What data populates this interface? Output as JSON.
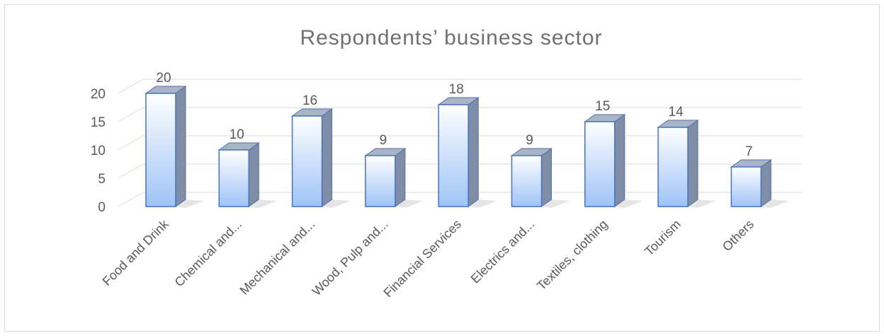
{
  "chart_data": {
    "type": "bar",
    "title": "Respondents’ business sector",
    "xlabel": "",
    "ylabel": "",
    "categories": [
      "Food and Drink",
      "Chemical and...",
      "Mechanical and...",
      "Wood, Pulp and...",
      "Financial Services",
      "Electrics and...",
      "Textiles, clothing",
      "Tourism",
      "Others"
    ],
    "values": [
      20,
      10,
      16,
      9,
      18,
      9,
      15,
      14,
      7
    ],
    "ylim": [
      0,
      20
    ],
    "yticks": [
      0,
      5,
      10,
      15,
      20
    ],
    "grid": true,
    "legend": "none",
    "bar_color": "#b8d2f5",
    "bar_side_color": "#7f8ea6",
    "bar_top_color": "#a9b4c6"
  }
}
